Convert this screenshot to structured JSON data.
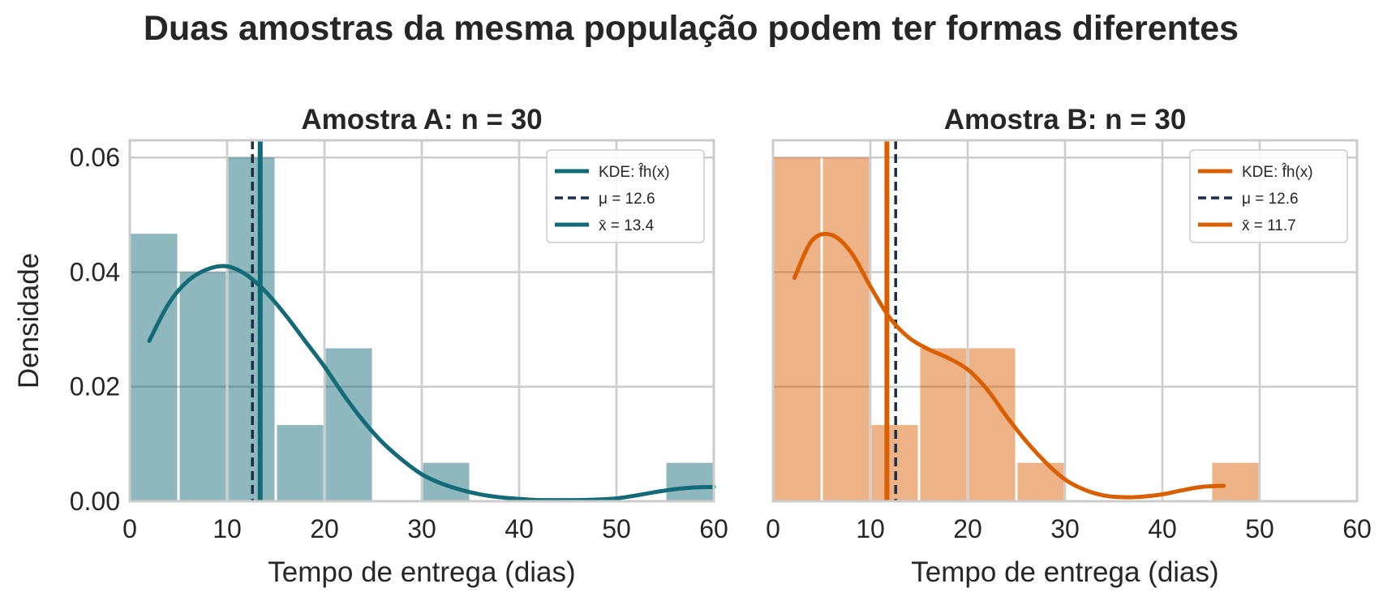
{
  "figure": {
    "suptitle": "Duas amostras da mesma população podem ter formas diferentes"
  },
  "chart_data": [
    {
      "type": "bar",
      "panel": "A",
      "title": "Amostra A: n = 30",
      "xlabel": "Tempo de entrega (dias)",
      "ylabel": "Densidade",
      "xlim": [
        0,
        60
      ],
      "ylim": [
        0,
        0.063
      ],
      "xticks": [
        0,
        10,
        20,
        30,
        40,
        50,
        60
      ],
      "xtick_labels": [
        "0",
        "10",
        "20",
        "30",
        "40",
        "50",
        "60"
      ],
      "yticks": [
        0,
        0.02,
        0.04,
        0.06
      ],
      "ytick_labels": [
        "0.00",
        "0.02",
        "0.04",
        "0.06"
      ],
      "grid": true,
      "legend_position": "top-right",
      "color": "#136b78",
      "bin_width": 5,
      "bins": [
        {
          "x0": 0,
          "x1": 5,
          "density": 0.0467
        },
        {
          "x0": 5,
          "x1": 10,
          "density": 0.04
        },
        {
          "x0": 10,
          "x1": 15,
          "density": 0.06
        },
        {
          "x0": 15,
          "x1": 20,
          "density": 0.0133
        },
        {
          "x0": 20,
          "x1": 25,
          "density": 0.0267
        },
        {
          "x0": 30,
          "x1": 35,
          "density": 0.0067
        },
        {
          "x0": 55,
          "x1": 60,
          "density": 0.0067
        }
      ],
      "kde": {
        "x": [
          2,
          4,
          6,
          8,
          10,
          12,
          14,
          16,
          18,
          20,
          22,
          24,
          26,
          28,
          30,
          32,
          34,
          36,
          38,
          40,
          42,
          44,
          46,
          48,
          50,
          52,
          54,
          56,
          58,
          60
        ],
        "y": [
          0.028,
          0.0345,
          0.0385,
          0.0405,
          0.041,
          0.0395,
          0.0365,
          0.0325,
          0.028,
          0.0235,
          0.0185,
          0.014,
          0.0102,
          0.0072,
          0.0047,
          0.0031,
          0.002,
          0.0012,
          0.0007,
          0.0004,
          0.0002,
          0.0002,
          0.0002,
          0.0003,
          0.0005,
          0.001,
          0.0016,
          0.0021,
          0.0024,
          0.0025
        ]
      },
      "mu": 12.6,
      "xbar": 13.4,
      "legend": [
        {
          "label": "KDE: f̂h(x)",
          "style": "solid"
        },
        {
          "label": "μ = 12.6",
          "style": "dashed"
        },
        {
          "label": "x̄ = 13.4",
          "style": "solid"
        }
      ]
    },
    {
      "type": "bar",
      "panel": "B",
      "title": "Amostra B: n = 30",
      "xlabel": "Tempo de entrega (dias)",
      "ylabel": "",
      "xlim": [
        0,
        60
      ],
      "ylim": [
        0,
        0.063
      ],
      "xticks": [
        0,
        10,
        20,
        30,
        40,
        50,
        60
      ],
      "xtick_labels": [
        "0",
        "10",
        "20",
        "30",
        "40",
        "50",
        "60"
      ],
      "yticks": [
        0,
        0.02,
        0.04,
        0.06
      ],
      "ytick_labels": [],
      "grid": true,
      "legend_position": "top-right",
      "color": "#d95f02",
      "bin_width": 5,
      "bins": [
        {
          "x0": 0,
          "x1": 5,
          "density": 0.06
        },
        {
          "x0": 5,
          "x1": 10,
          "density": 0.06
        },
        {
          "x0": 10,
          "x1": 15,
          "density": 0.0133
        },
        {
          "x0": 15,
          "x1": 20,
          "density": 0.0267
        },
        {
          "x0": 20,
          "x1": 25,
          "density": 0.0267
        },
        {
          "x0": 25,
          "x1": 30,
          "density": 0.0067
        },
        {
          "x0": 45,
          "x1": 50,
          "density": 0.0067
        }
      ],
      "kde": {
        "x": [
          2.2,
          4,
          6,
          8,
          10,
          12,
          14,
          16,
          18,
          20,
          22,
          24,
          26,
          28,
          30,
          32,
          34,
          36,
          38,
          40,
          42,
          44,
          46.3
        ],
        "y": [
          0.039,
          0.0455,
          0.0465,
          0.0435,
          0.0375,
          0.032,
          0.0285,
          0.0265,
          0.025,
          0.023,
          0.0195,
          0.0148,
          0.0105,
          0.0068,
          0.0038,
          0.002,
          0.001,
          0.0007,
          0.0008,
          0.0012,
          0.0019,
          0.0025,
          0.0027
        ]
      },
      "mu": 12.6,
      "xbar": 11.7,
      "legend": [
        {
          "label": "KDE: f̂h(x)",
          "style": "solid"
        },
        {
          "label": "μ = 12.6",
          "style": "dashed"
        },
        {
          "label": "x̄ = 11.7",
          "style": "solid"
        }
      ]
    }
  ],
  "colors": {
    "mu_line": "#1c2e4a",
    "grid": "#cccccc",
    "frame": "#cccccc"
  }
}
